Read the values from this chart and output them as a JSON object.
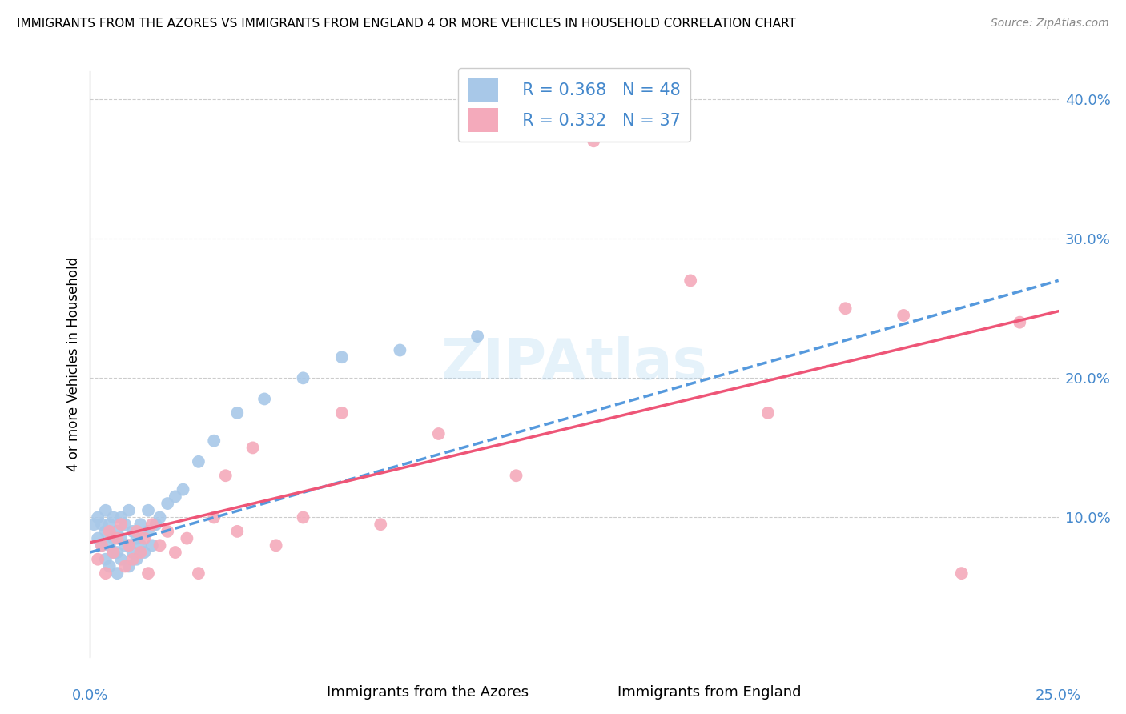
{
  "title": "IMMIGRANTS FROM THE AZORES VS IMMIGRANTS FROM ENGLAND 4 OR MORE VEHICLES IN HOUSEHOLD CORRELATION CHART",
  "source": "Source: ZipAtlas.com",
  "xlabel_bottom": [
    "Immigrants from the Azores",
    "Immigrants from England"
  ],
  "ylabel": "4 or more Vehicles in Household",
  "xlim": [
    0.0,
    0.25
  ],
  "ylim": [
    0.0,
    0.42
  ],
  "R_azores": 0.368,
  "N_azores": 48,
  "R_england": 0.332,
  "N_england": 37,
  "color_azores": "#a8c8e8",
  "color_england": "#f4aabb",
  "line_color_azores": "#5599dd",
  "line_color_england": "#ee5577",
  "watermark_text": "ZIPAtlas",
  "azores_x": [
    0.001,
    0.002,
    0.002,
    0.003,
    0.003,
    0.004,
    0.004,
    0.004,
    0.005,
    0.005,
    0.005,
    0.006,
    0.006,
    0.006,
    0.007,
    0.007,
    0.007,
    0.008,
    0.008,
    0.008,
    0.009,
    0.009,
    0.01,
    0.01,
    0.01,
    0.011,
    0.011,
    0.012,
    0.012,
    0.013,
    0.013,
    0.014,
    0.015,
    0.015,
    0.016,
    0.017,
    0.018,
    0.02,
    0.022,
    0.024,
    0.028,
    0.032,
    0.038,
    0.045,
    0.055,
    0.065,
    0.08,
    0.1
  ],
  "azores_y": [
    0.095,
    0.085,
    0.1,
    0.08,
    0.095,
    0.07,
    0.09,
    0.105,
    0.065,
    0.08,
    0.095,
    0.075,
    0.085,
    0.1,
    0.06,
    0.075,
    0.09,
    0.07,
    0.085,
    0.1,
    0.08,
    0.095,
    0.065,
    0.08,
    0.105,
    0.075,
    0.09,
    0.07,
    0.085,
    0.08,
    0.095,
    0.075,
    0.09,
    0.105,
    0.08,
    0.095,
    0.1,
    0.11,
    0.115,
    0.12,
    0.14,
    0.155,
    0.175,
    0.185,
    0.2,
    0.215,
    0.22,
    0.23
  ],
  "england_x": [
    0.002,
    0.003,
    0.004,
    0.005,
    0.006,
    0.007,
    0.008,
    0.009,
    0.01,
    0.011,
    0.012,
    0.013,
    0.014,
    0.015,
    0.016,
    0.018,
    0.02,
    0.022,
    0.025,
    0.028,
    0.032,
    0.035,
    0.038,
    0.042,
    0.048,
    0.055,
    0.065,
    0.075,
    0.09,
    0.11,
    0.13,
    0.155,
    0.175,
    0.195,
    0.21,
    0.225,
    0.24
  ],
  "england_y": [
    0.07,
    0.08,
    0.06,
    0.09,
    0.075,
    0.085,
    0.095,
    0.065,
    0.08,
    0.07,
    0.09,
    0.075,
    0.085,
    0.06,
    0.095,
    0.08,
    0.09,
    0.075,
    0.085,
    0.06,
    0.1,
    0.13,
    0.09,
    0.15,
    0.08,
    0.1,
    0.175,
    0.095,
    0.16,
    0.13,
    0.37,
    0.27,
    0.175,
    0.25,
    0.245,
    0.06,
    0.24
  ],
  "line_azores_x0": 0.0,
  "line_azores_y0": 0.075,
  "line_azores_x1": 0.25,
  "line_azores_y1": 0.27,
  "line_england_x0": 0.0,
  "line_england_y0": 0.082,
  "line_england_x1": 0.25,
  "line_england_y1": 0.248
}
